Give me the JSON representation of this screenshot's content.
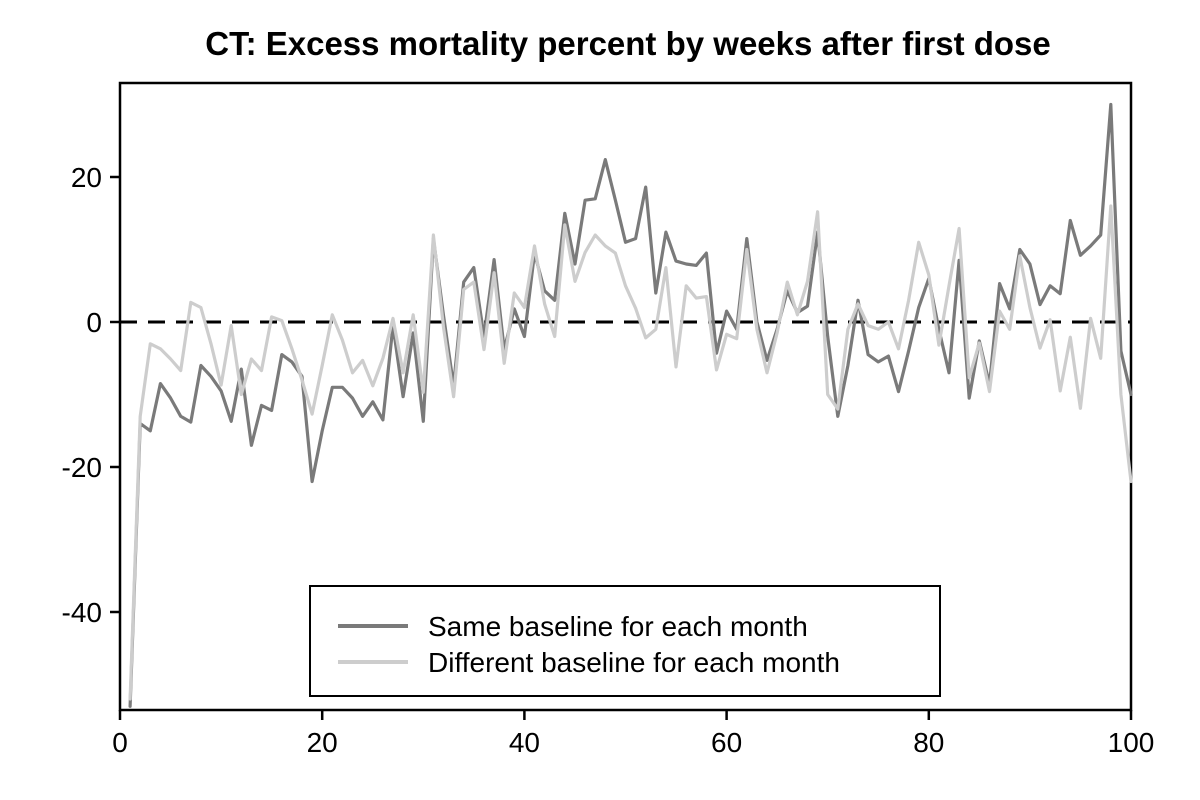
{
  "chart_data": {
    "type": "line",
    "title": "CT: Excess mortality percent by weeks after first dose",
    "xlabel": "",
    "ylabel": "",
    "x_unit": "weeks after first dose",
    "x_start": 1,
    "x_step": 1,
    "x_range": [
      0,
      100
    ],
    "y_range": [
      -53.5,
      33
    ],
    "xticks": [
      0,
      20,
      40,
      60,
      80,
      100
    ],
    "yticks": [
      20,
      0,
      -20,
      -40
    ],
    "grid": false,
    "zero_line": {
      "value": 0,
      "style": "dashed",
      "color": "#000000"
    },
    "legend_position": "bottom-center-inside",
    "series": [
      {
        "name": "Same baseline for each month",
        "color": "#7a7a7a",
        "values": [
          -53,
          -14,
          -15,
          -8.5,
          -10.5,
          -13,
          -13.8,
          -6,
          -7.5,
          -9.5,
          -13.7,
          -6.5,
          -17,
          -11.5,
          -12.2,
          -4.5,
          -5.5,
          -7.5,
          -22,
          -15,
          -9,
          -9,
          -10.5,
          -13,
          -11,
          -13.5,
          -0.5,
          -10.3,
          -1.5,
          -13.7,
          11.5,
          0.9,
          -8.8,
          5.5,
          7.5,
          -2,
          8.6,
          -3.8,
          1.8,
          -2,
          9.5,
          4.3,
          3,
          15,
          8,
          16.8,
          17,
          22.4,
          16.8,
          11,
          11.5,
          18.6,
          4,
          12.4,
          8.4,
          8,
          7.8,
          9.5,
          -4.3,
          1.5,
          -1,
          11.5,
          0,
          -5.3,
          -1,
          4.3,
          1.3,
          2.2,
          12.4,
          -2,
          -13,
          -6,
          3,
          -4.5,
          -5.5,
          -4.7,
          -9.6,
          -4,
          2,
          6,
          -1,
          -7,
          8.5,
          -10.5,
          -2.6,
          -8.6,
          5.3,
          1.8,
          10,
          8,
          2.4,
          5,
          3.9,
          14,
          9.2,
          10.5,
          12,
          30,
          -4,
          -10
        ]
      },
      {
        "name": "Different baseline for each month",
        "color": "#cdcdcd",
        "values": [
          -52,
          -13,
          -3,
          -3.7,
          -5.1,
          -6.7,
          2.7,
          2,
          -3,
          -8.7,
          -0.5,
          -10,
          -5.1,
          -6.7,
          0.7,
          0.2,
          -3.7,
          -8,
          -12.7,
          -6,
          1,
          -2.5,
          -7,
          -5.3,
          -8.8,
          -5,
          0.5,
          -7,
          1,
          -9.7,
          12,
          -0.7,
          -10.3,
          4.5,
          5.5,
          -3.8,
          6.8,
          -5.7,
          4,
          2,
          10.5,
          2.5,
          -2,
          13.4,
          5.6,
          9.6,
          12,
          10.5,
          9.5,
          5,
          1.9,
          -2.2,
          -1,
          7.5,
          -6.2,
          5,
          3.3,
          3.5,
          -6.6,
          -1.7,
          -2.3,
          10,
          -1,
          -7,
          -1.5,
          5.5,
          1,
          5.6,
          15.2,
          -10,
          -12,
          -1,
          2.5,
          -0.5,
          -1,
          0,
          -3.7,
          3,
          11,
          6.5,
          -3.2,
          5,
          12.9,
          -7.7,
          -2.9,
          -9.6,
          1.5,
          -1,
          9.1,
          2,
          -3.6,
          0.3,
          -9.5,
          -2.1,
          -11.9,
          0.5,
          -5,
          16,
          -10,
          -22
        ]
      }
    ]
  },
  "legend": {
    "items": [
      {
        "label": "Same baseline for each month"
      },
      {
        "label": "Different baseline for each month"
      }
    ]
  },
  "colors": {
    "axis": "#000000",
    "background": "#ffffff",
    "series_dark": "#7a7a7a",
    "series_light": "#cdcdcd"
  }
}
